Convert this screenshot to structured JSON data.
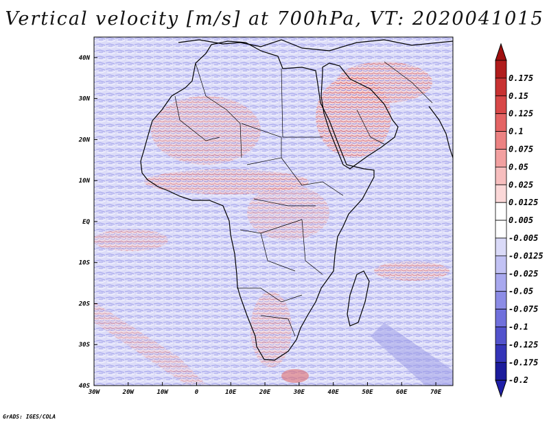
{
  "title": "Vertical velocity [m/s] at 700hPa, VT: 2020041015",
  "footer": "GrADS: IGES/COLA",
  "map": {
    "projection": "latlon",
    "lon_range": [
      -30,
      75
    ],
    "lat_range": [
      -40,
      45
    ],
    "lon_ticks": [
      {
        "value": -30,
        "label": "30W"
      },
      {
        "value": -20,
        "label": "20W"
      },
      {
        "value": -10,
        "label": "10W"
      },
      {
        "value": 0,
        "label": "0"
      },
      {
        "value": 10,
        "label": "10E"
      },
      {
        "value": 20,
        "label": "20E"
      },
      {
        "value": 30,
        "label": "30E"
      },
      {
        "value": 40,
        "label": "40E"
      },
      {
        "value": 50,
        "label": "50E"
      },
      {
        "value": 60,
        "label": "60E"
      },
      {
        "value": 70,
        "label": "70E"
      }
    ],
    "lat_ticks": [
      {
        "value": 40,
        "label": "40N"
      },
      {
        "value": 30,
        "label": "30N"
      },
      {
        "value": 20,
        "label": "20N"
      },
      {
        "value": 10,
        "label": "10N"
      },
      {
        "value": 0,
        "label": "EQ"
      },
      {
        "value": -10,
        "label": "10S"
      },
      {
        "value": -20,
        "label": "20S"
      },
      {
        "value": -30,
        "label": "30S"
      },
      {
        "value": -40,
        "label": "40S"
      }
    ],
    "field": "vertical velocity",
    "level": "700hPa",
    "valid_time": "2020041015"
  },
  "colorbar": {
    "levels": [
      {
        "label": "0.175",
        "color": "#b01c1c"
      },
      {
        "label": "0.15",
        "color": "#c83232"
      },
      {
        "label": "0.125",
        "color": "#d84848"
      },
      {
        "label": "0.1",
        "color": "#e46464"
      },
      {
        "label": "0.075",
        "color": "#ec8282"
      },
      {
        "label": "0.05",
        "color": "#f2a0a0"
      },
      {
        "label": "0.025",
        "color": "#f7bebe"
      },
      {
        "label": "0.0125",
        "color": "#fbd8d8"
      },
      {
        "label": "0.005",
        "color": "#ffffff"
      },
      {
        "label": "-0.005",
        "color": "#ffffff"
      },
      {
        "label": "-0.0125",
        "color": "#dadaf8"
      },
      {
        "label": "-0.025",
        "color": "#c2c2f4"
      },
      {
        "label": "-0.05",
        "color": "#a8a8ee"
      },
      {
        "label": "-0.075",
        "color": "#8c8ce6"
      },
      {
        "label": "-0.1",
        "color": "#7070dc"
      },
      {
        "label": "-0.125",
        "color": "#5252cc"
      },
      {
        "label": "-0.175",
        "color": "#3434b8"
      },
      {
        "label": "-0.2",
        "color": "#1c1c9c"
      }
    ],
    "top_arrow_color": "#a01010",
    "bottom_arrow_color": "#2020a8"
  }
}
